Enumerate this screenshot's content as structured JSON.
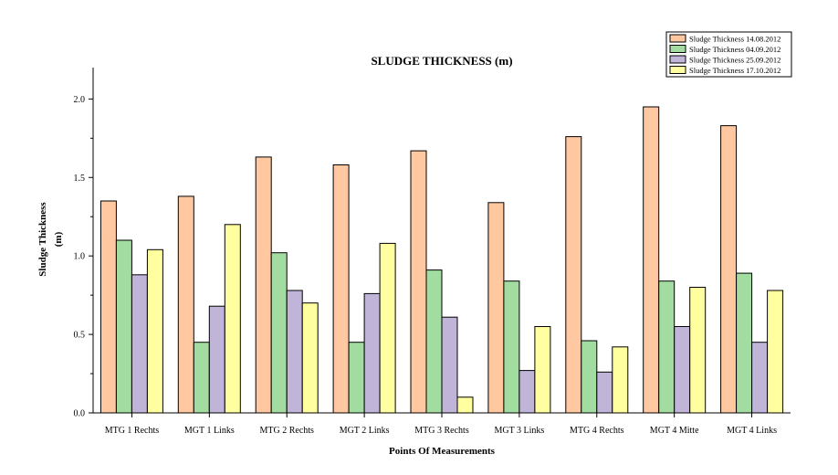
{
  "chart_data": {
    "type": "bar",
    "title": "SLUDGE THICKNESS (m)",
    "xlabel": "Points Of Measurements",
    "ylabel_lines": [
      "Sludge Thickness",
      "(m)"
    ],
    "categories": [
      "MTG 1 Rechts",
      "MGT 1 Links",
      "MTG 2 Rechts",
      "MGT 2 Links",
      "MTG 3 Rechts",
      "MGT 3 Links",
      "MTG 4 Rechts",
      "MGT 4 Mitte",
      "MGT 4 Links"
    ],
    "ylim": [
      0,
      2.2
    ],
    "yticks": [
      "0.0",
      "0.5",
      "1.0",
      "1.5",
      "2.0"
    ],
    "ytick_values": [
      0,
      0.5,
      1.0,
      1.5,
      2.0
    ],
    "legend_position": "top-right",
    "series": [
      {
        "name": "Sludge Thickness 14.08.2012",
        "color": "#FFC8A0",
        "values": [
          1.35,
          1.38,
          1.63,
          1.58,
          1.67,
          1.34,
          1.76,
          1.95,
          1.83
        ]
      },
      {
        "name": "Sludge Thickness 04.09.2012",
        "color": "#A3DCA0",
        "values": [
          1.1,
          0.45,
          1.02,
          0.45,
          0.91,
          0.84,
          0.46,
          0.84,
          0.89
        ]
      },
      {
        "name": "Sludge Thickness 25.09.2012",
        "color": "#C0B4D8",
        "values": [
          0.88,
          0.68,
          0.78,
          0.76,
          0.61,
          0.27,
          0.26,
          0.55,
          0.45
        ]
      },
      {
        "name": "Sludge Thickness 17.10.2012",
        "color": "#FFFFA0",
        "values": [
          1.04,
          1.2,
          0.7,
          1.08,
          0.1,
          0.55,
          0.42,
          0.8,
          0.78
        ]
      }
    ]
  }
}
